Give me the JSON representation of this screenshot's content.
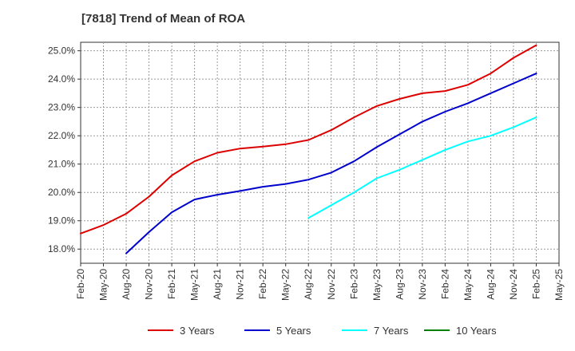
{
  "chart_data": {
    "type": "line",
    "title": "[7818]  Trend of Mean of ROA",
    "xlabel": "",
    "ylabel": "",
    "y_suffix": "%",
    "ylim": [
      17.5,
      25.3
    ],
    "yticks": [
      "18.0%",
      "19.0%",
      "20.0%",
      "21.0%",
      "22.0%",
      "23.0%",
      "24.0%",
      "25.0%"
    ],
    "ytick_values": [
      18,
      19,
      20,
      21,
      22,
      23,
      24,
      25
    ],
    "x_tick_labels": [
      "Feb-20",
      "May-20",
      "Aug-20",
      "Nov-20",
      "Feb-21",
      "May-21",
      "Aug-21",
      "Nov-21",
      "Feb-22",
      "May-22",
      "Aug-22",
      "Nov-22",
      "Feb-23",
      "May-23",
      "Aug-23",
      "Nov-23",
      "Feb-24",
      "May-24",
      "Aug-24",
      "Nov-24",
      "Feb-25",
      "May-25"
    ],
    "grid": true,
    "legend_position": "bottom",
    "series": [
      {
        "name": "3 Years",
        "color": "#dd0000",
        "start_index": 0,
        "values": [
          18.55,
          18.85,
          19.25,
          19.85,
          20.6,
          21.1,
          21.4,
          21.55,
          21.62,
          21.7,
          21.85,
          22.2,
          22.65,
          23.05,
          23.3,
          23.5,
          23.58,
          23.8,
          24.2,
          24.75,
          25.2
        ]
      },
      {
        "name": "5 Years",
        "color": "#0000cc",
        "start_index": 2,
        "values": [
          17.85,
          18.6,
          19.3,
          19.75,
          19.92,
          20.05,
          20.2,
          20.3,
          20.45,
          20.7,
          21.1,
          21.6,
          22.05,
          22.5,
          22.85,
          23.15,
          23.5,
          23.85,
          24.2
        ]
      },
      {
        "name": "7 Years",
        "color": "#00ffff",
        "start_index": 10,
        "values": [
          19.1,
          19.55,
          20.0,
          20.5,
          20.8,
          21.15,
          21.5,
          21.8,
          22.0,
          22.3,
          22.65
        ]
      },
      {
        "name": "10 Years",
        "color": "#008000",
        "start_index": 0,
        "values": []
      }
    ]
  }
}
